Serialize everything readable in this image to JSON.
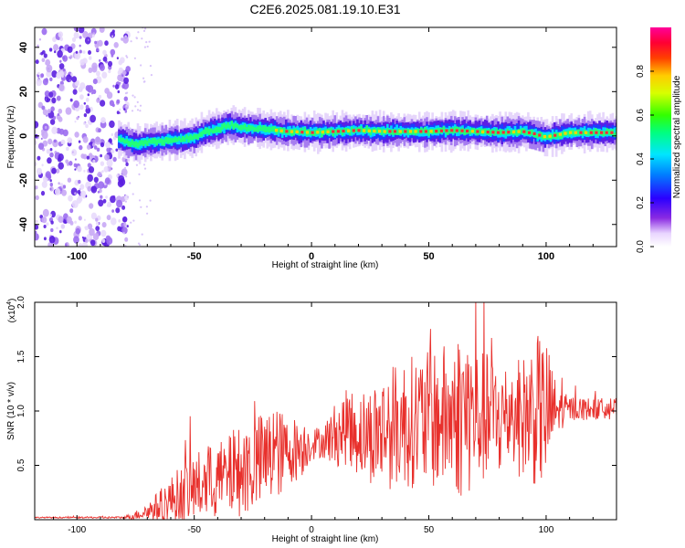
{
  "title": "C2E6.2025.081.19.10.E31",
  "chart_data": [
    {
      "type": "heatmap",
      "xlabel": "Height of straight line (km)",
      "ylabel": "Frequency (Hz)",
      "xlim": [
        -118,
        130
      ],
      "ylim": [
        -50,
        49
      ],
      "xticks": [
        -100,
        -50,
        0,
        50,
        100
      ],
      "yticks": [
        -40,
        -20,
        0,
        20,
        40
      ],
      "colorbar": {
        "label": "Normalized spectral amplitude",
        "range": [
          0,
          1
        ],
        "ticks": [
          "0.0",
          "0.2",
          "0.4",
          "0.6",
          "0.8"
        ],
        "colormap": "white-purple-blue-cyan-green-yellow-red-magenta"
      },
      "ridge": {
        "description_values": "peak frequency (Hz) vs height (km)",
        "x": [
          -82,
          -75,
          -70,
          -60,
          -50,
          -45,
          -40,
          -35,
          -30,
          -20,
          -10,
          0,
          10,
          20,
          30,
          40,
          50,
          60,
          70,
          80,
          90,
          95,
          100,
          110,
          120,
          130
        ],
        "y": [
          -1.5,
          -4,
          -3,
          -2,
          -1,
          2,
          3,
          5,
          4,
          3,
          2,
          1.5,
          2,
          2.5,
          2,
          2,
          2,
          2.5,
          2,
          1.5,
          2,
          1,
          -0.5,
          1.5,
          1.5,
          1.5
        ]
      },
      "noise_region": {
        "x_from": -118,
        "x_to": -80
      }
    },
    {
      "type": "line",
      "xlabel": "Height of straight line (km)",
      "ylabel": "SNR (10 * v/v)",
      "exponent_label": "(x10",
      "exponent_power": "4",
      "exponent_close": ")",
      "xlim": [
        -118,
        130
      ],
      "ylim": [
        0,
        2.0
      ],
      "xticks": [
        -100,
        -50,
        0,
        50,
        100
      ],
      "yticks": [
        "0.5",
        "1.0",
        "1.5",
        "2.0"
      ],
      "series": [
        {
          "color": "#e8302c",
          "envelope_x": [
            -118,
            -80,
            -75,
            -70,
            -65,
            -60,
            -55,
            -50,
            -45,
            -40,
            -35,
            -30,
            -25,
            -20,
            -15,
            -10,
            -5,
            0,
            5,
            10,
            15,
            20,
            25,
            30,
            40,
            50,
            60,
            65,
            70,
            80,
            90,
            95,
            100,
            105,
            110,
            120,
            130
          ],
          "envelope_mean": [
            0.02,
            0.02,
            0.04,
            0.08,
            0.12,
            0.18,
            0.24,
            0.3,
            0.32,
            0.36,
            0.4,
            0.45,
            0.5,
            0.55,
            0.6,
            0.63,
            0.66,
            0.7,
            0.72,
            0.78,
            0.85,
            0.8,
            0.78,
            0.82,
            0.9,
            0.92,
            0.95,
            1.0,
            0.95,
            0.92,
            0.95,
            1.0,
            0.98,
            1.0,
            1.02,
            1.02,
            1.02
          ],
          "envelope_spread": [
            0.005,
            0.01,
            0.04,
            0.08,
            0.15,
            0.22,
            0.28,
            0.32,
            0.35,
            0.35,
            0.38,
            0.42,
            0.45,
            0.45,
            0.45,
            0.3,
            0.3,
            0.15,
            0.15,
            0.3,
            0.35,
            0.4,
            0.45,
            0.55,
            0.6,
            0.65,
            0.7,
            0.85,
            0.65,
            0.55,
            0.55,
            0.7,
            0.7,
            0.2,
            0.12,
            0.1,
            0.1
          ]
        }
      ]
    }
  ]
}
